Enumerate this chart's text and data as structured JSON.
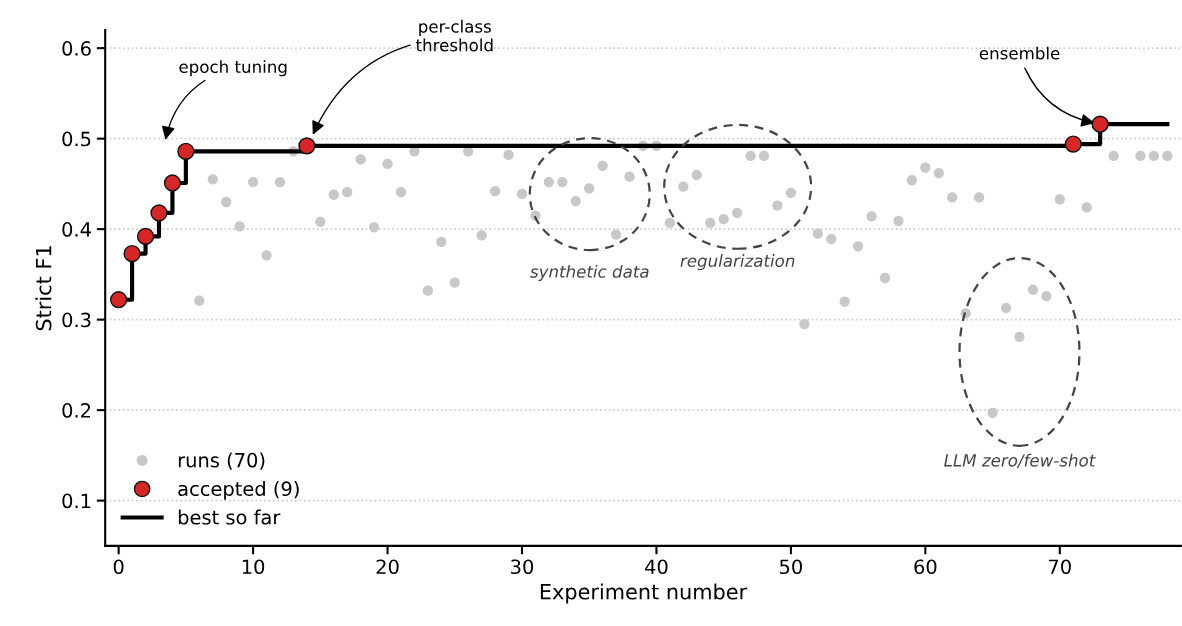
{
  "chart_data": {
    "type": "scatter",
    "xlabel": "Experiment number",
    "ylabel": "Strict F1",
    "xlim": [
      -1,
      79
    ],
    "xticks": [
      0,
      10,
      20,
      30,
      40,
      50,
      60,
      70
    ],
    "ylim": [
      0.05,
      0.62
    ],
    "yticks": [
      0.1,
      0.2,
      0.3,
      0.4,
      0.5,
      0.6
    ],
    "grid": "y",
    "legend": "bottom left",
    "series": [
      {
        "name": "runs (70)",
        "color": "#c8c8c8",
        "marker": "circle",
        "x": [
          6,
          7,
          8,
          9,
          10,
          11,
          12,
          13,
          15,
          16,
          17,
          18,
          19,
          20,
          21,
          22,
          23,
          24,
          25,
          26,
          27,
          28,
          29,
          30,
          31,
          32,
          33,
          34,
          35,
          36,
          37,
          38,
          39,
          40,
          41,
          42,
          43,
          44,
          45,
          46,
          47,
          48,
          49,
          50,
          51,
          52,
          53,
          54,
          55,
          56,
          57,
          58,
          59,
          60,
          61,
          62,
          63,
          64,
          65,
          66,
          67,
          68,
          69,
          70,
          72,
          74,
          76,
          77,
          78
        ],
        "values": [
          0.321,
          0.455,
          0.43,
          0.403,
          0.452,
          0.371,
          0.452,
          0.486,
          0.408,
          0.438,
          0.441,
          0.477,
          0.402,
          0.472,
          0.441,
          0.486,
          0.332,
          0.386,
          0.341,
          0.486,
          0.393,
          0.442,
          0.482,
          0.439,
          0.415,
          0.452,
          0.452,
          0.431,
          0.445,
          0.47,
          0.394,
          0.458,
          0.492,
          0.492,
          0.407,
          0.447,
          0.46,
          0.407,
          0.411,
          0.418,
          0.481,
          0.481,
          0.426,
          0.44,
          0.295,
          0.395,
          0.389,
          0.32,
          0.381,
          0.414,
          0.346,
          0.409,
          0.454,
          0.468,
          0.462,
          0.435,
          0.307,
          0.435,
          0.197,
          0.313,
          0.281,
          0.333,
          0.326,
          0.433,
          0.424,
          0.481,
          0.481,
          0.481,
          0.481
        ]
      },
      {
        "name": "best so far",
        "type": "step",
        "color": "#000000",
        "marker": "none",
        "x": [
          0,
          1,
          2,
          3,
          4,
          5,
          14,
          71,
          73,
          78
        ],
        "values": [
          0.322,
          0.373,
          0.392,
          0.418,
          0.451,
          0.486,
          0.492,
          0.494,
          0.516,
          0.516
        ]
      },
      {
        "name": "accepted (9)",
        "color": "#d62728",
        "marker": "circle",
        "x": [
          0,
          1,
          2,
          3,
          4,
          5,
          14,
          71,
          73
        ],
        "values": [
          0.322,
          0.373,
          0.392,
          0.418,
          0.451,
          0.486,
          0.492,
          0.494,
          0.516
        ]
      }
    ],
    "annotations": [
      "epoch tuning",
      "per-class\nthreshold",
      {
        "text": "ensemble",
        "x": 73,
        "y": 0.516
      },
      "synthetic data",
      "regularization",
      "LLM zero/few-shot"
    ]
  }
}
